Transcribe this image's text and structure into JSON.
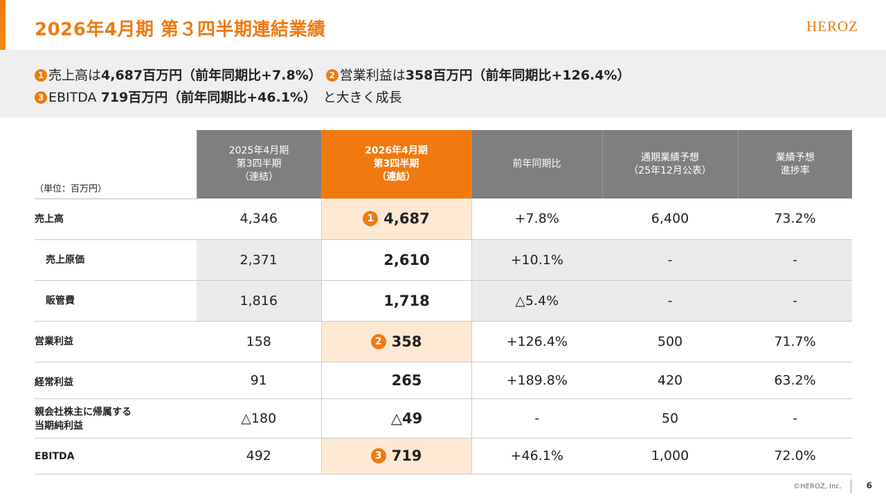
{
  "header": {
    "title": "2026年4月期 第３四半期連結業績",
    "logo_text": "HEROZ"
  },
  "summary": {
    "line1": {
      "badge1": "1",
      "p1": "売上高は",
      "v1": "4,687百万円（前年同期比+7.8%）",
      "badge2": "2",
      "p2": "営業利益は",
      "v2": "358百万円（前年同期比+126.4%）"
    },
    "line2": {
      "badge3": "3",
      "p1": "EBITDA ",
      "v1": "719百万円（前年同期比+46.1%）",
      "p2": "　と大きく成長"
    }
  },
  "table": {
    "unit_label": "（単位：百万円）",
    "columns": [
      {
        "l1": "2025年4月期",
        "l2": "第3四半期",
        "l3": "（連結）"
      },
      {
        "l1": "2026年4月期",
        "l2": "第3四半期",
        "l3": "（連結）"
      },
      {
        "l1": "前年同期比"
      },
      {
        "l1": "通期業績予想",
        "l2": "（25年12月公表）"
      },
      {
        "l1": "業績予想",
        "l2": "進捗率"
      }
    ],
    "rows": [
      {
        "label": "売上高",
        "prev": "4,346",
        "badge": "1",
        "cur": "4,687",
        "yoy": "+7.8%",
        "forecast": "6,400",
        "progress": "73.2%"
      },
      {
        "label": "売上原価",
        "prev": "2,371",
        "cur": "2,610",
        "yoy": "+10.1%",
        "forecast": "-",
        "progress": "-"
      },
      {
        "label": "販管費",
        "prev": "1,816",
        "cur": "1,718",
        "yoy": "△5.4%",
        "forecast": "-",
        "progress": "-"
      },
      {
        "label": "営業利益",
        "prev": "158",
        "badge": "2",
        "cur": "358",
        "yoy": "+126.4%",
        "forecast": "500",
        "progress": "71.7%"
      },
      {
        "label": "経常利益",
        "prev": "91",
        "cur": "265",
        "yoy": "+189.8%",
        "forecast": "420",
        "progress": "63.2%"
      },
      {
        "label_l1": "親会社株主に帰属する",
        "label_l2": "当期純利益",
        "prev": "△180",
        "cur": "△49",
        "yoy": "-",
        "forecast": "50",
        "progress": "-"
      },
      {
        "label": "EBITDA",
        "prev": "492",
        "badge": "3",
        "cur": "719",
        "yoy": "+46.1%",
        "forecast": "1,000",
        "progress": "72.0%"
      }
    ]
  },
  "footer": {
    "copyright": "©HEROZ, Inc.",
    "page_number": "6"
  }
}
